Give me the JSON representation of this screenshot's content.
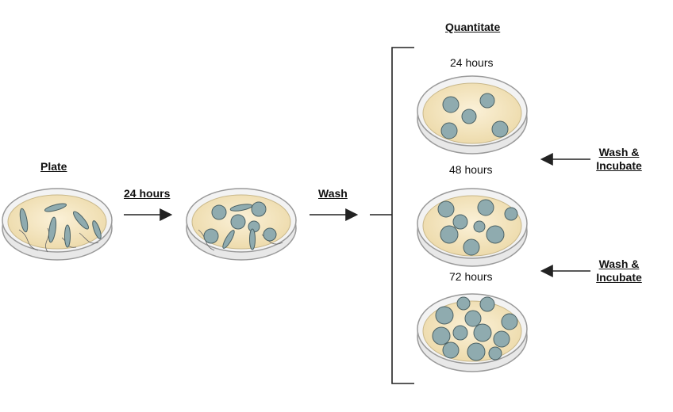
{
  "labels": {
    "plate": "Plate",
    "step1": "24 hours",
    "step2": "Wash",
    "quantitate": "Quantitate",
    "t24": "24 hours",
    "t48": "48 hours",
    "t72": "72 hours",
    "wash_incubate_1_line1": "Wash &",
    "wash_incubate_1_line2": "Incubate",
    "wash_incubate_2_line1": "Wash &",
    "wash_incubate_2_line2": "Incubate"
  },
  "colors": {
    "dish_rim": "#9a9a9a",
    "dish_fill": "#f5e7c4",
    "cell": "#8fabaf",
    "cell_outline": "#4c6265",
    "arrow": "#222222"
  }
}
